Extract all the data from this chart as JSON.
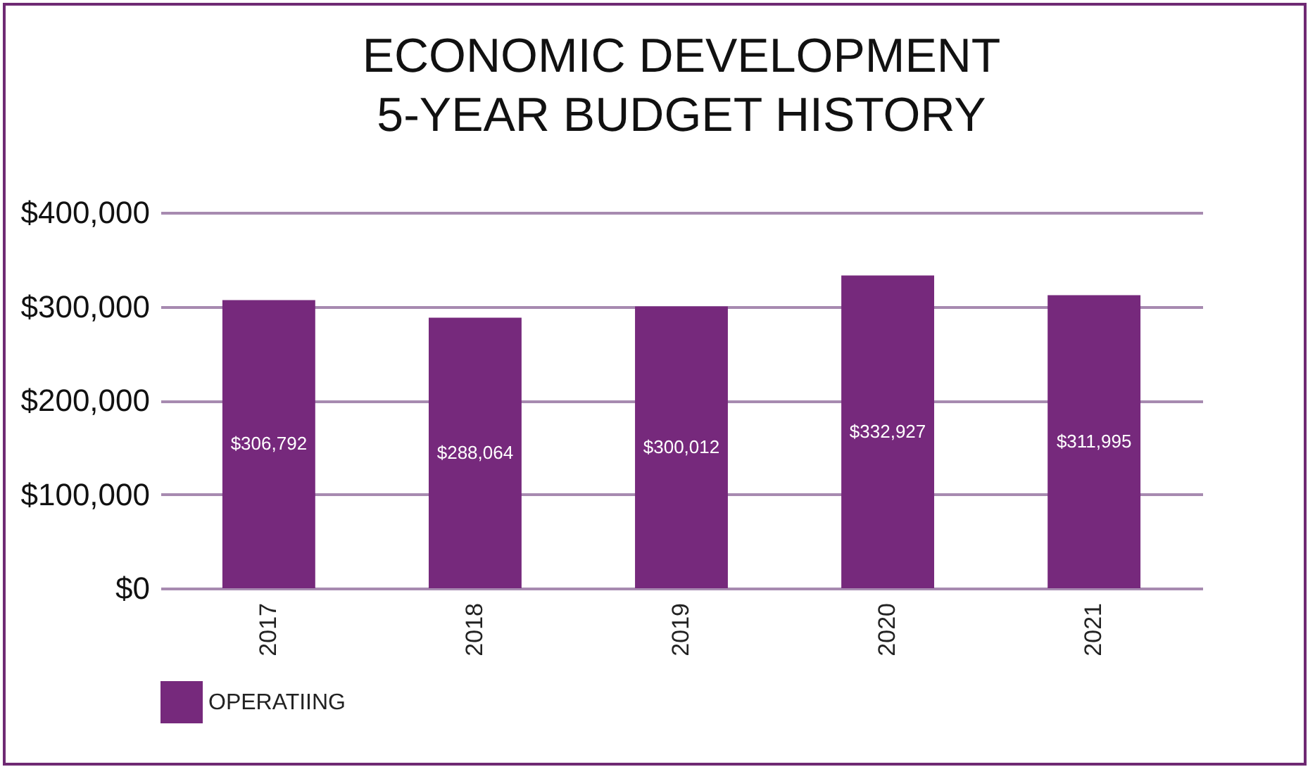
{
  "chart_data": {
    "type": "bar",
    "title": "ECONOMIC DEVELOPMENT\n5-YEAR BUDGET HISTORY",
    "categories": [
      "2017",
      "2018",
      "2019",
      "2020",
      "2021"
    ],
    "series": [
      {
        "name": "OPERATIING",
        "color": "#76297c",
        "values": [
          306792,
          288064,
          300012,
          332927,
          311995
        ],
        "value_labels": [
          "$306,792",
          "$288,064",
          "$300,012",
          "$332,927",
          "$311,995"
        ]
      }
    ],
    "ylim": [
      0,
      400000
    ],
    "yticks": [
      {
        "value": 0,
        "label": "$0"
      },
      {
        "value": 100000,
        "label": "$100,000"
      },
      {
        "value": 200000,
        "label": "$200,000"
      },
      {
        "value": 300000,
        "label": "$300,000"
      },
      {
        "value": 400000,
        "label": "$400,000"
      }
    ],
    "grid": "y",
    "legend": "bottom"
  }
}
